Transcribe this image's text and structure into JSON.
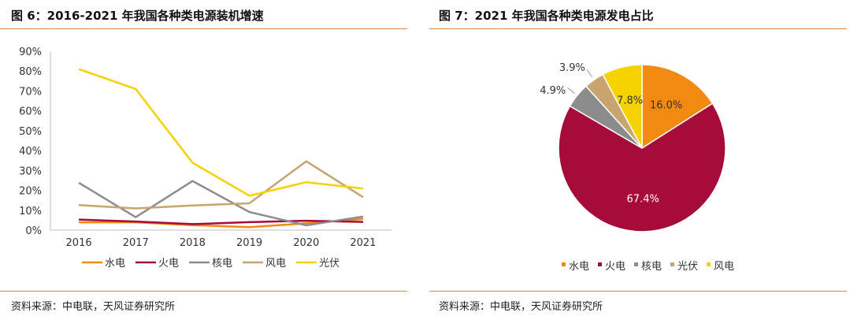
{
  "left": {
    "title": "图 6：2016-2021 年我国各种类电源装机增速",
    "source": "资料来源：中电联，天风证券研究所"
  },
  "right": {
    "title": "图 7：2021 年我国各种类电源发电占比",
    "source": "资料来源：中电联，天风证券研究所"
  },
  "colors": {
    "accent_rule": "#d98a3a"
  },
  "chart_data": [
    {
      "type": "line",
      "x": [
        "2016",
        "2017",
        "2018",
        "2019",
        "2020",
        "2021"
      ],
      "ylim": [
        0,
        90
      ],
      "y_ticks": [
        0,
        10,
        20,
        30,
        40,
        50,
        60,
        70,
        80,
        90
      ],
      "y_tick_labels": [
        "0%",
        "10%",
        "20%",
        "30%",
        "40%",
        "50%",
        "60%",
        "70%",
        "80%",
        "90%"
      ],
      "grid": false,
      "legend_position": "bottom",
      "series": [
        {
          "name": "水电",
          "color": "#f08a10",
          "values": [
            3.9,
            3.9,
            2.5,
            1.5,
            3.4,
            5.6
          ]
        },
        {
          "name": "火电",
          "color": "#a50c3a",
          "values": [
            5.3,
            4.3,
            3.0,
            4.0,
            4.7,
            4.1
          ]
        },
        {
          "name": "核电",
          "color": "#8c8c8c",
          "values": [
            23.8,
            6.5,
            24.7,
            9.1,
            2.4,
            6.8
          ]
        },
        {
          "name": "风电",
          "color": "#c8a46e",
          "values": [
            12.6,
            10.9,
            12.4,
            13.5,
            34.6,
            16.6
          ]
        },
        {
          "name": "光伏",
          "color": "#f6d200",
          "values": [
            81.0,
            71.0,
            33.9,
            17.3,
            24.1,
            20.9
          ]
        }
      ]
    },
    {
      "type": "pie",
      "grid": false,
      "legend_position": "bottom",
      "slices": [
        {
          "name": "水电",
          "value": 16.0,
          "label": "16.0%",
          "color": "#f08a10"
        },
        {
          "name": "火电",
          "value": 67.4,
          "label": "67.4%",
          "color": "#a50c3a"
        },
        {
          "name": "核电",
          "value": 4.9,
          "label": "4.9%",
          "color": "#8c8c8c"
        },
        {
          "name": "光伏",
          "value": 3.9,
          "label": "3.9%",
          "color": "#c8a46e"
        },
        {
          "name": "风电",
          "value": 7.8,
          "label": "7.8%",
          "color": "#f6d200"
        }
      ]
    }
  ]
}
